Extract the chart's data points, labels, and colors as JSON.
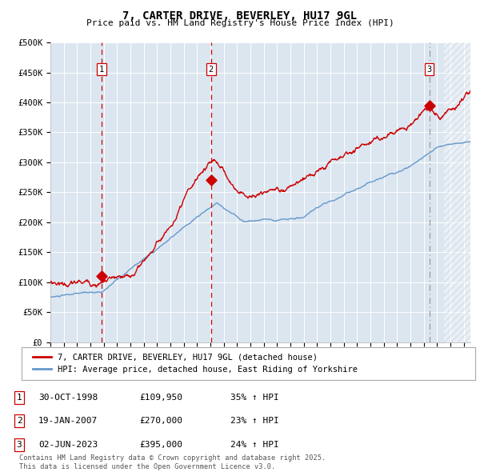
{
  "title": "7, CARTER DRIVE, BEVERLEY, HU17 9GL",
  "subtitle": "Price paid vs. HM Land Registry's House Price Index (HPI)",
  "ylim": [
    0,
    500000
  ],
  "yticks": [
    0,
    50000,
    100000,
    150000,
    200000,
    250000,
    300000,
    350000,
    400000,
    450000,
    500000
  ],
  "ytick_labels": [
    "£0",
    "£50K",
    "£100K",
    "£150K",
    "£200K",
    "£250K",
    "£300K",
    "£350K",
    "£400K",
    "£450K",
    "£500K"
  ],
  "xlim_start": 1995.0,
  "xlim_end": 2026.5,
  "sale_dates": [
    1998.83,
    2007.05,
    2023.42
  ],
  "sale_prices": [
    109950,
    270000,
    395000
  ],
  "sale_labels": [
    "1",
    "2",
    "3"
  ],
  "red_line_color": "#cc0000",
  "blue_line_color": "#6699cc",
  "background_color": "#dce6f0",
  "grid_color": "#ffffff",
  "legend_label_red": "7, CARTER DRIVE, BEVERLEY, HU17 9GL (detached house)",
  "legend_label_blue": "HPI: Average price, detached house, East Riding of Yorkshire",
  "table_entries": [
    {
      "num": "1",
      "date": "30-OCT-1998",
      "price": "£109,950",
      "hpi": "35% ↑ HPI"
    },
    {
      "num": "2",
      "date": "19-JAN-2007",
      "price": "£270,000",
      "hpi": "23% ↑ HPI"
    },
    {
      "num": "3",
      "date": "02-JUN-2023",
      "price": "£395,000",
      "hpi": "24% ↑ HPI"
    }
  ],
  "footer": "Contains HM Land Registry data © Crown copyright and database right 2025.\nThis data is licensed under the Open Government Licence v3.0."
}
